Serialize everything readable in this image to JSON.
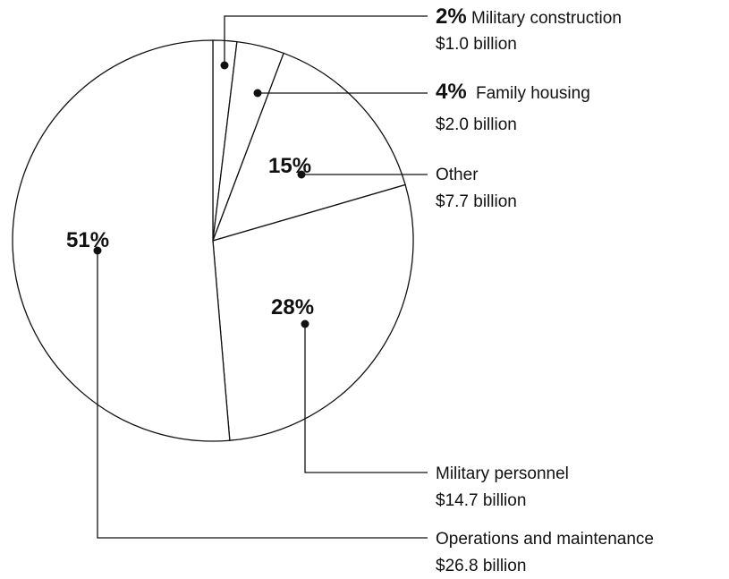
{
  "chart_data": {
    "type": "pie",
    "slices": [
      {
        "label": "Military construction",
        "percent_label": "2%",
        "amount": "$1.0 billion",
        "value": 1.0
      },
      {
        "label": "Family housing",
        "percent_label": "4%",
        "amount": "$2.0 billion",
        "value": 2.0
      },
      {
        "label": "Other",
        "percent_label": "15%",
        "amount": "$7.7 billion",
        "value": 7.7
      },
      {
        "label": "Military personnel",
        "percent_label": "28%",
        "amount": "$14.7 billion",
        "value": 14.7
      },
      {
        "label": "Operations and maintenance",
        "percent_label": "51%",
        "amount": "$26.8 billion",
        "value": 26.8
      }
    ],
    "start_angle": "12 o'clock",
    "direction": "clockwise",
    "colors": {
      "fill": "#ffffff",
      "stroke": "#111111"
    }
  }
}
